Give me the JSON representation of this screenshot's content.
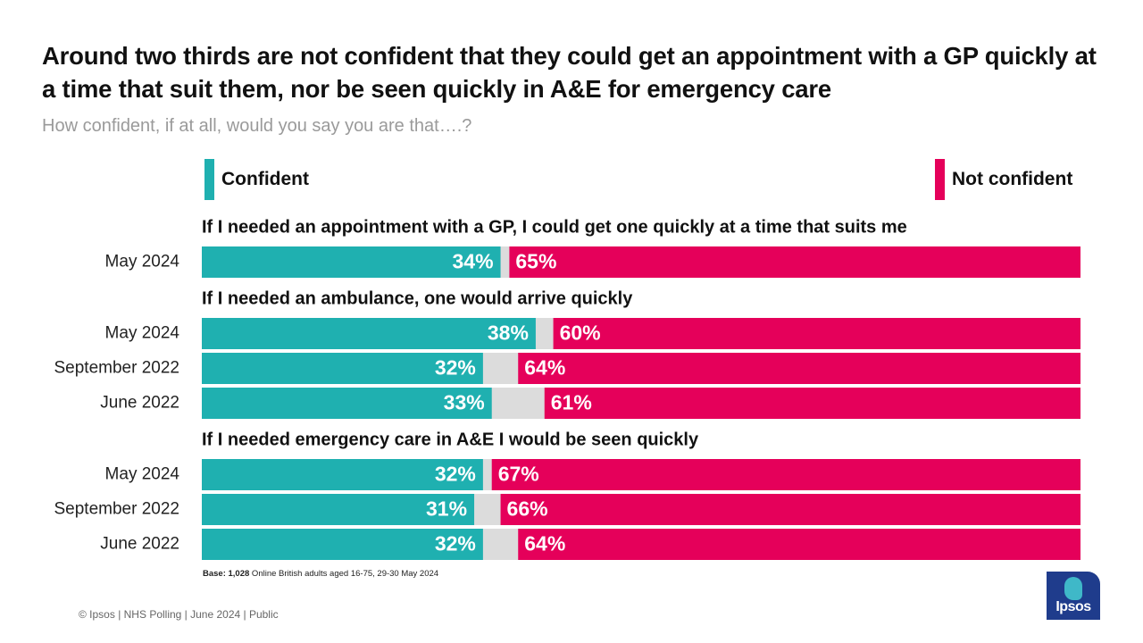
{
  "title": "Around two thirds are not confident that they could get an appointment with a GP quickly at a time that suit them, nor be seen quickly in A&E for emergency care",
  "subtitle": "How confident, if at all, would you say you are that….?",
  "legend": {
    "confident": "Confident",
    "not_confident": "Not confident"
  },
  "colors": {
    "confident": "#1fb0b0",
    "not_confident": "#e5005a",
    "gap": "#dcdcdc"
  },
  "chart_data": {
    "type": "bar",
    "orientation": "horizontal-stacked",
    "unit": "%",
    "groups": [
      {
        "question": "If I needed an appointment with a GP, I could get one quickly at a time that suits me",
        "rows": [
          {
            "label": "May 2024",
            "confident": 34,
            "not_confident": 65
          }
        ]
      },
      {
        "question": "If I needed an ambulance, one would arrive quickly",
        "rows": [
          {
            "label": "May 2024",
            "confident": 38,
            "not_confident": 60
          },
          {
            "label": "September 2022",
            "confident": 32,
            "not_confident": 64
          },
          {
            "label": "June 2022",
            "confident": 33,
            "not_confident": 61
          }
        ]
      },
      {
        "question": "If I needed emergency care in A&E I would be seen quickly",
        "rows": [
          {
            "label": "May 2024",
            "confident": 32,
            "not_confident": 67
          },
          {
            "label": "September 2022",
            "confident": 31,
            "not_confident": 66
          },
          {
            "label": "June 2022",
            "confident": 32,
            "not_confident": 64
          }
        ]
      }
    ],
    "xlim": [
      0,
      100
    ],
    "grid": false,
    "legend_position": "top"
  },
  "base_note": {
    "bold": "Base: 1,028",
    "text": " Online British adults aged 16-75, 29-30 May 2024"
  },
  "footer": "© Ipsos | NHS Polling | June 2024 | Public",
  "logo_text": "Ipsos"
}
